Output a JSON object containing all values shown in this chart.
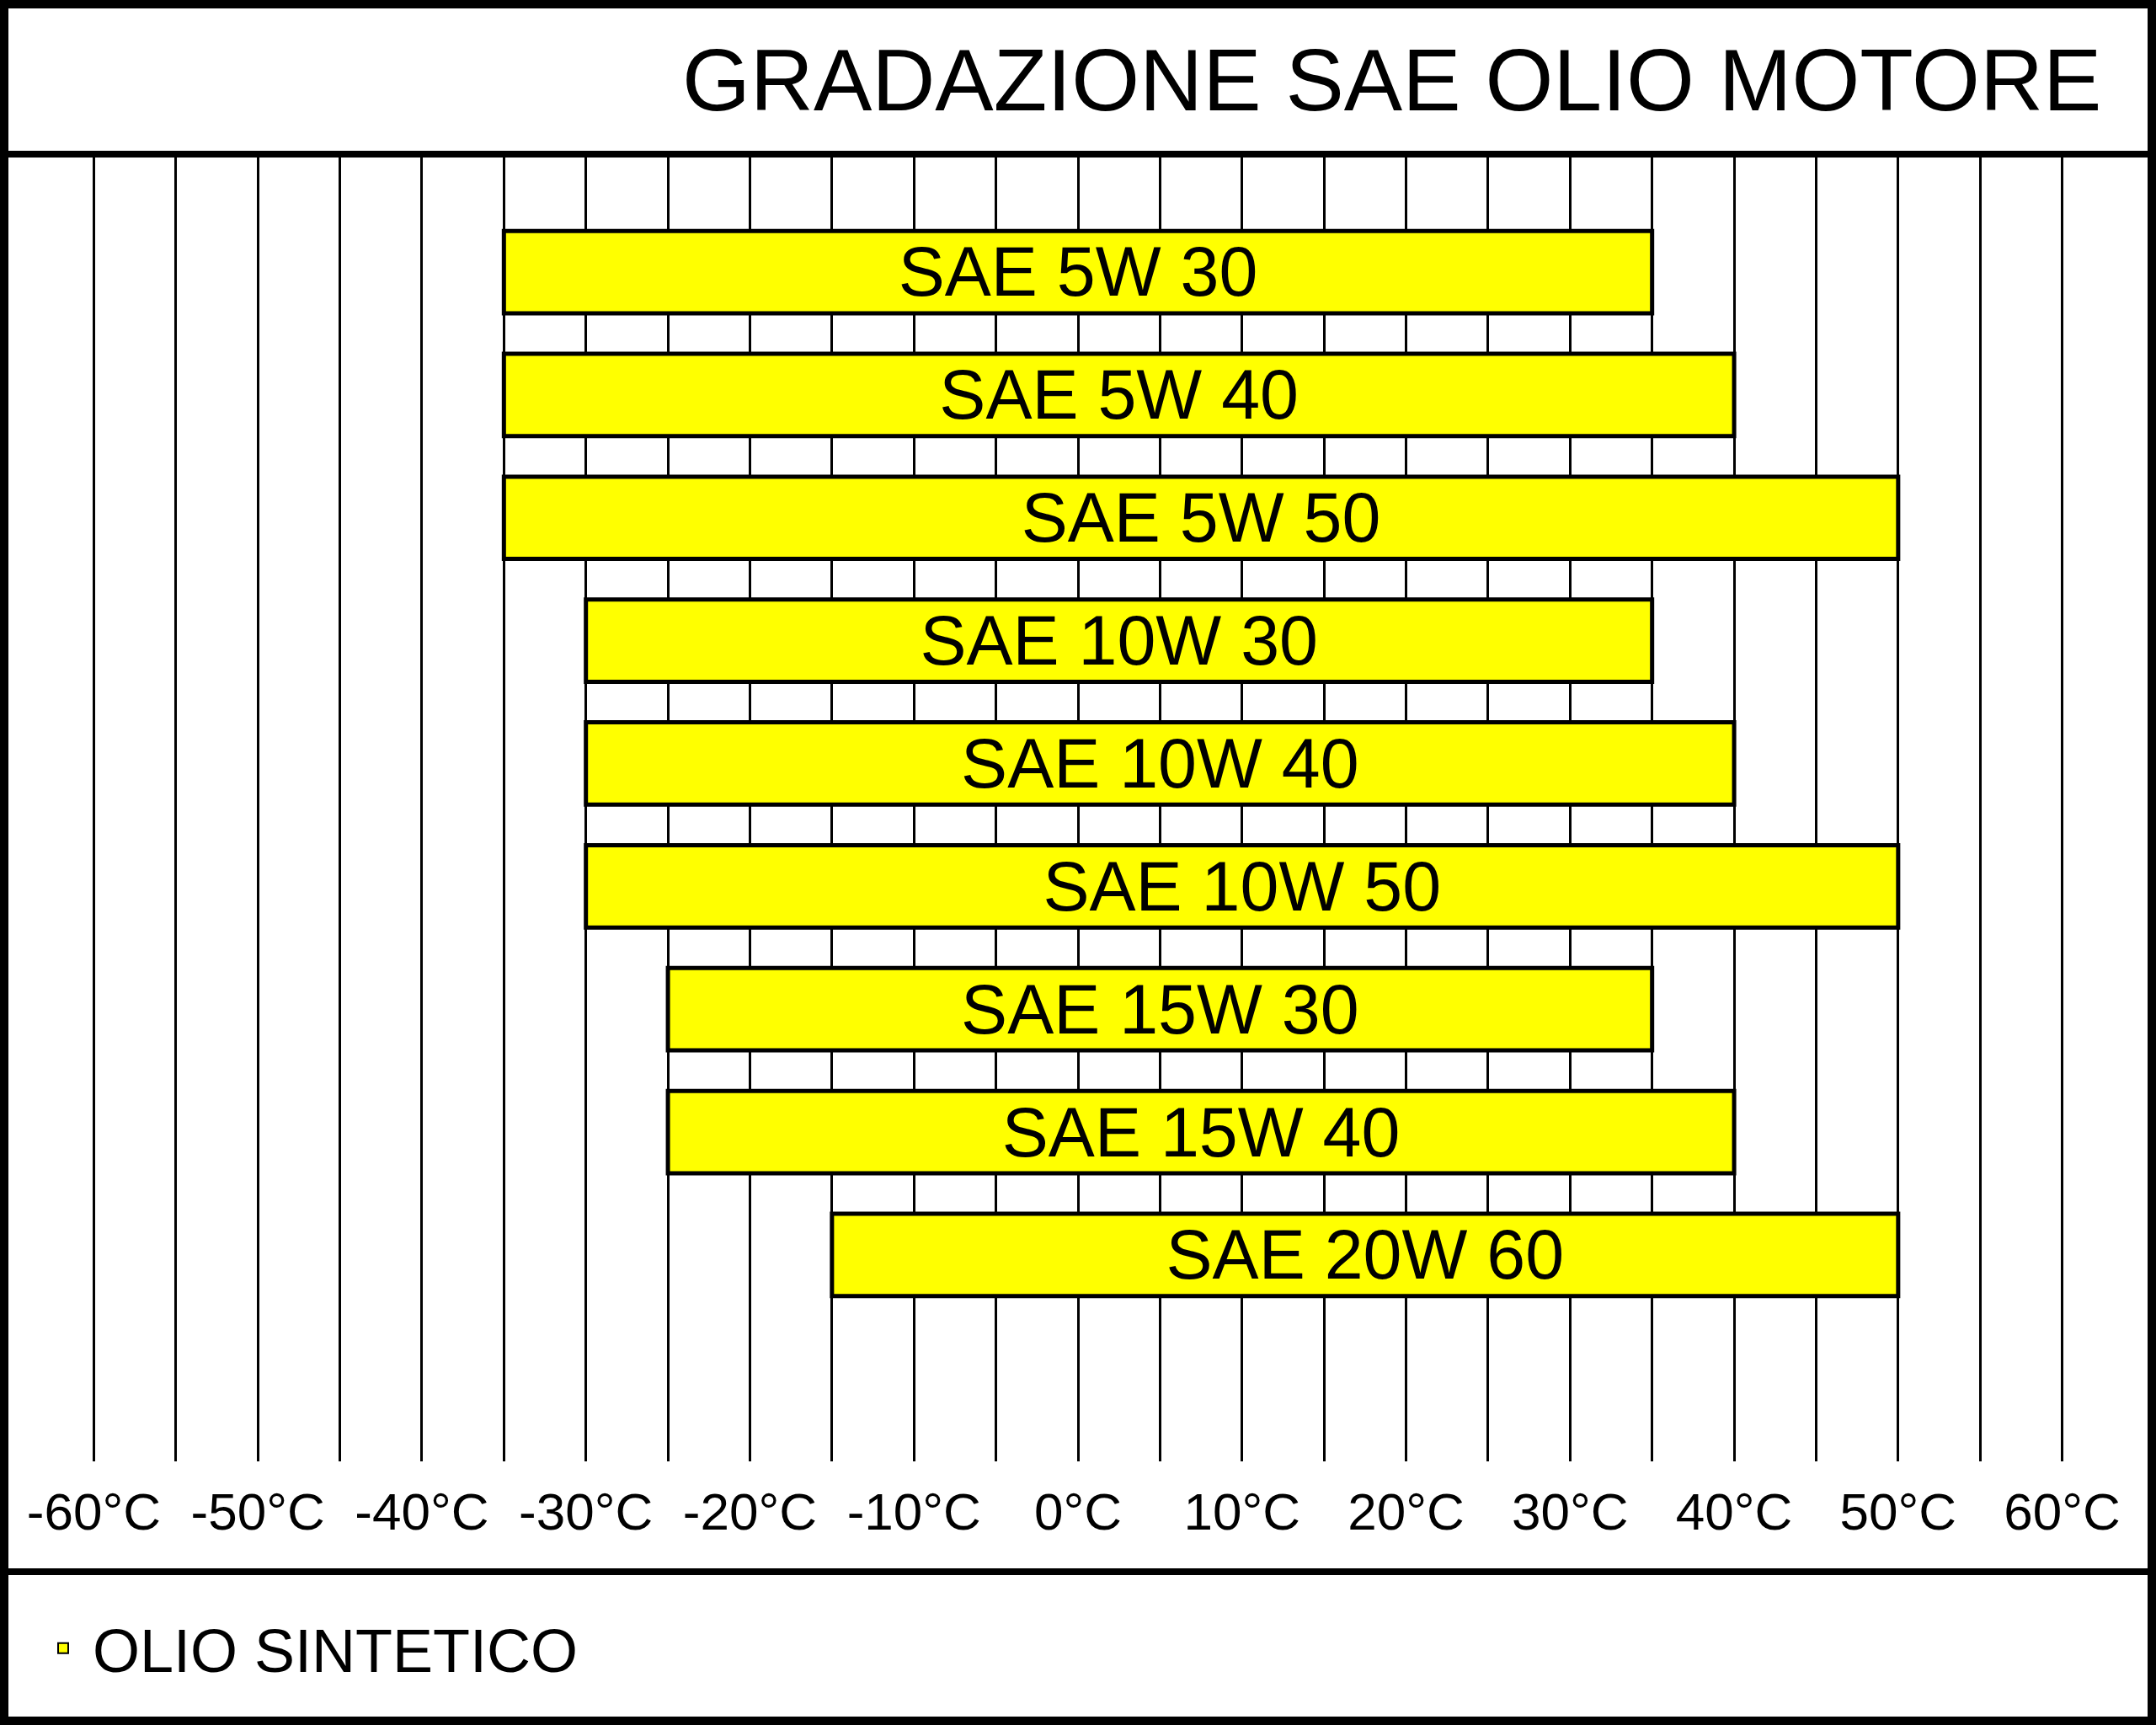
{
  "chart_data": {
    "type": "bar",
    "orientation": "horizontal",
    "title": "GRADAZIONE SAE OLIO MOTORE",
    "categories": [
      "SAE 5W 30",
      "SAE 5W 40",
      "SAE 5W 50",
      "SAE 10W 30",
      "SAE 10W 40",
      "SAE 10W 50",
      "SAE 15W 30",
      "SAE 15W 40",
      "SAE 20W 60"
    ],
    "series": [
      {
        "name": "OLIO SINTETICO",
        "color": "#ffff00",
        "base": [
          -35,
          -35,
          -35,
          -30,
          -30,
          -30,
          -25,
          -25,
          -15
        ],
        "values": [
          70,
          75,
          85,
          65,
          70,
          80,
          60,
          65,
          65
        ]
      }
    ],
    "xlim": [
      -65,
      65
    ],
    "xticks": [
      {
        "value": -60,
        "label": "-60°C"
      },
      {
        "value": -55,
        "label": null
      },
      {
        "value": -50,
        "label": "-50°C"
      },
      {
        "value": -45,
        "label": null
      },
      {
        "value": -40,
        "label": "-40°C"
      },
      {
        "value": -35,
        "label": null
      },
      {
        "value": -30,
        "label": "-30°C"
      },
      {
        "value": -25,
        "label": null
      },
      {
        "value": -20,
        "label": "-20°C"
      },
      {
        "value": -15,
        "label": null
      },
      {
        "value": -10,
        "label": "-10°C"
      },
      {
        "value": -5,
        "label": null
      },
      {
        "value": 0,
        "label": "0°C"
      },
      {
        "value": 5,
        "label": null
      },
      {
        "value": 10,
        "label": "10°C"
      },
      {
        "value": 15,
        "label": null
      },
      {
        "value": 20,
        "label": "20°C"
      },
      {
        "value": 25,
        "label": null
      },
      {
        "value": 30,
        "label": "30°C"
      },
      {
        "value": 35,
        "label": null
      },
      {
        "value": 40,
        "label": "40°C"
      },
      {
        "value": 45,
        "label": null
      },
      {
        "value": 50,
        "label": "50°C"
      },
      {
        "value": 55,
        "label": null
      },
      {
        "value": 60,
        "label": "60°C"
      }
    ],
    "grid": "x",
    "legend": "bottom left",
    "tick_labels": "x"
  }
}
